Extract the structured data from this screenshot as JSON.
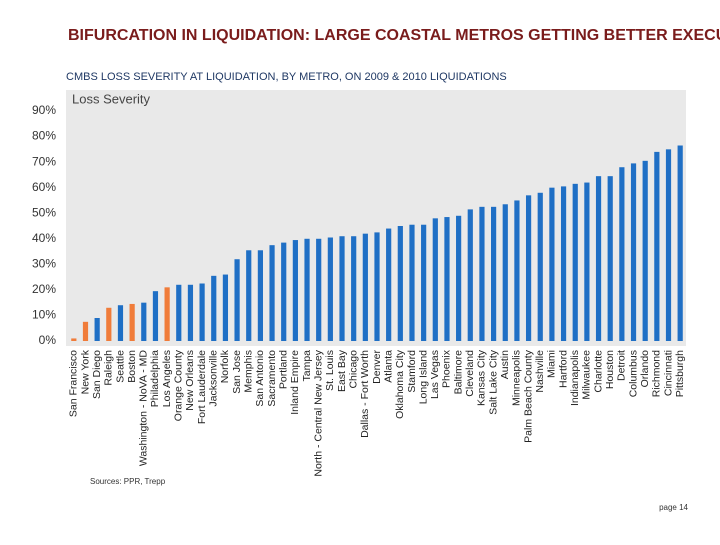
{
  "chart_data": {
    "type": "bar",
    "title": "BIFURCATION IN LIQUIDATION: LARGE COASTAL METROS GETTING BETTER EXECUTION",
    "subtitle": "CMBS LOSS SEVERITY AT LIQUIDATION, BY METRO, ON 2009 & 2010 LIQUIDATIONS",
    "categories": [
      "San Francisco",
      "New York",
      "San Diego",
      "Raleigh",
      "Seattle",
      "Boston",
      "Washington - NoVA - MD",
      "Philadelphia",
      "Los Angeles",
      "Orange County",
      "New Orleans",
      "Fort Lauderdale",
      "Jacksonville",
      "Norfolk",
      "San Jose",
      "Memphis",
      "San Antonio",
      "Sacramento",
      "Portland",
      "Inland Empire",
      "Tampa",
      "North - Central New Jersey",
      "St. Louis",
      "East Bay",
      "Chicago",
      "Dallas - Fort Worth",
      "Denver",
      "Atlanta",
      "Oklahoma City",
      "Stamford",
      "Long Island",
      "Las Vegas",
      "Phoenix",
      "Baltimore",
      "Cleveland",
      "Kansas City",
      "Salt Lake City",
      "Austin",
      "Minneapolis",
      "Palm Beach County",
      "Nashville",
      "Miami",
      "Hartford",
      "Indianapolis",
      "Milwaukee",
      "Charlotte",
      "Houston",
      "Detroit",
      "Columbus",
      "Orlando",
      "Richmond",
      "Cincinnati",
      "Pittsburgh"
    ],
    "series": [
      {
        "name": "Loss Severity",
        "values": [
          1,
          7.5,
          9,
          13,
          14,
          14.5,
          15,
          19.5,
          21,
          22,
          22,
          22.5,
          25.5,
          26,
          32,
          35.5,
          35.5,
          37.5,
          38.5,
          39.5,
          40,
          40,
          40.5,
          41,
          41,
          42,
          42.5,
          44,
          45,
          45.5,
          45.5,
          48,
          48.5,
          49,
          51.5,
          52.5,
          52.5,
          53.5,
          55,
          57,
          58,
          60,
          60.5,
          61.5,
          62,
          64.5,
          64.5,
          68,
          69.5,
          70.5,
          74,
          75,
          76.5
        ],
        "colors": [
          "#f07c3a",
          "#f07c3a",
          "#1f6fc5",
          "#f07c3a",
          "#1f6fc5",
          "#f07c3a",
          "#1f6fc5",
          "#1f6fc5",
          "#f07c3a",
          "#1f6fc5",
          "#1f6fc5",
          "#1f6fc5",
          "#1f6fc5",
          "#1f6fc5",
          "#1f6fc5",
          "#1f6fc5",
          "#1f6fc5",
          "#1f6fc5",
          "#1f6fc5",
          "#1f6fc5",
          "#1f6fc5",
          "#1f6fc5",
          "#1f6fc5",
          "#1f6fc5",
          "#1f6fc5",
          "#1f6fc5",
          "#1f6fc5",
          "#1f6fc5",
          "#1f6fc5",
          "#1f6fc5",
          "#1f6fc5",
          "#1f6fc5",
          "#1f6fc5",
          "#1f6fc5",
          "#1f6fc5",
          "#1f6fc5",
          "#1f6fc5",
          "#1f6fc5",
          "#1f6fc5",
          "#1f6fc5",
          "#1f6fc5",
          "#1f6fc5",
          "#1f6fc5",
          "#1f6fc5",
          "#1f6fc5",
          "#1f6fc5",
          "#1f6fc5",
          "#1f6fc5",
          "#1f6fc5",
          "#1f6fc5",
          "#1f6fc5",
          "#1f6fc5",
          "#1f6fc5"
        ]
      }
    ],
    "ylim": [
      0,
      90
    ],
    "yticks": [
      {
        "value": 0,
        "label": "0%"
      },
      {
        "value": 10,
        "label": "10%"
      },
      {
        "value": 20,
        "label": "20%"
      },
      {
        "value": 30,
        "label": "30%"
      },
      {
        "value": 40,
        "label": "40%"
      },
      {
        "value": 50,
        "label": "50%"
      },
      {
        "value": 60,
        "label": "60%"
      },
      {
        "value": 70,
        "label": "70%"
      },
      {
        "value": 80,
        "label": "80%"
      },
      {
        "value": 90,
        "label": "90%"
      }
    ],
    "source": "Sources: PPR, Trepp",
    "page": "page 14"
  }
}
